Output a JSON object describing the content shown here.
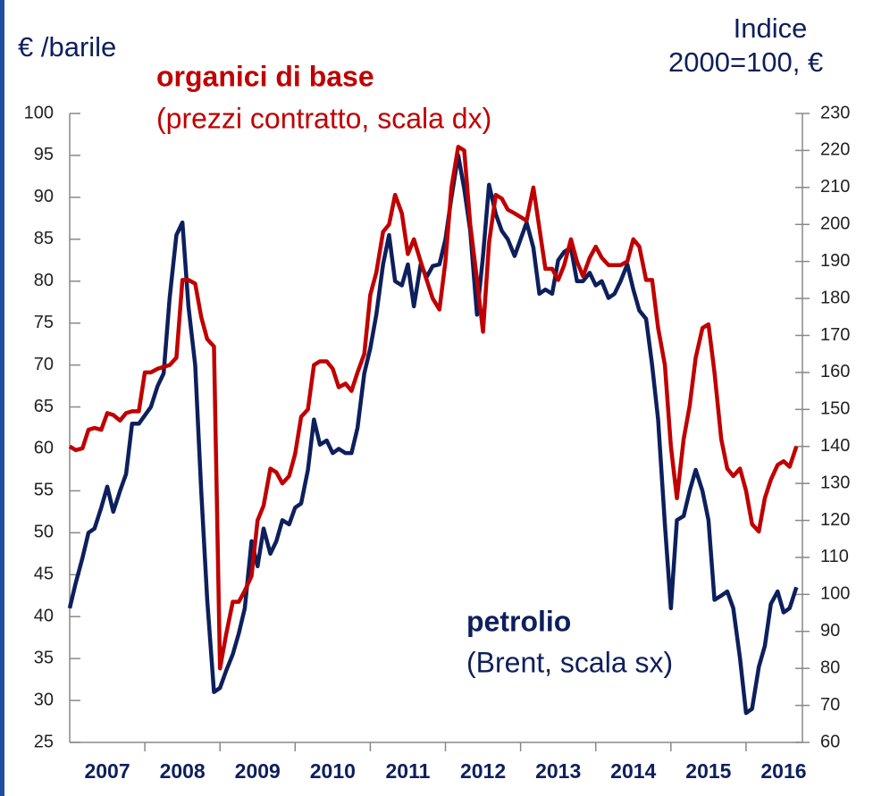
{
  "chart_data": {
    "type": "line",
    "ylabel": "€ /barile",
    "y2label": [
      "Indice",
      "2000=100, €"
    ],
    "annotations": [
      {
        "text": "organici di base",
        "series": 1
      },
      {
        "text": "(prezzi contratto, scala dx)",
        "series": 1
      },
      {
        "text": "petrolio",
        "series": 0
      },
      {
        "text": "(Brent, scala sx)",
        "series": 0
      }
    ],
    "x": [
      2007.0,
      2007.08,
      2007.17,
      2007.25,
      2007.33,
      2007.42,
      2007.5,
      2007.58,
      2007.67,
      2007.75,
      2007.83,
      2007.92,
      2008.0,
      2008.08,
      2008.17,
      2008.25,
      2008.33,
      2008.42,
      2008.5,
      2008.58,
      2008.67,
      2008.75,
      2008.83,
      2008.92,
      2009.0,
      2009.08,
      2009.17,
      2009.25,
      2009.33,
      2009.42,
      2009.5,
      2009.58,
      2009.67,
      2009.75,
      2009.83,
      2009.92,
      2010.0,
      2010.08,
      2010.17,
      2010.25,
      2010.33,
      2010.42,
      2010.5,
      2010.58,
      2010.67,
      2010.75,
      2010.83,
      2010.92,
      2011.0,
      2011.08,
      2011.17,
      2011.25,
      2011.33,
      2011.42,
      2011.5,
      2011.58,
      2011.67,
      2011.75,
      2011.83,
      2011.92,
      2012.0,
      2012.08,
      2012.17,
      2012.25,
      2012.33,
      2012.42,
      2012.5,
      2012.58,
      2012.67,
      2012.75,
      2012.83,
      2012.92,
      2013.0,
      2013.08,
      2013.17,
      2013.25,
      2013.33,
      2013.42,
      2013.5,
      2013.58,
      2013.67,
      2013.75,
      2013.83,
      2013.92,
      2014.0,
      2014.08,
      2014.17,
      2014.25,
      2014.33,
      2014.42,
      2014.5,
      2014.58,
      2014.67,
      2014.75,
      2014.83,
      2014.92,
      2015.0,
      2015.08,
      2015.17,
      2015.25,
      2015.33,
      2015.42,
      2015.5,
      2015.58,
      2015.67,
      2015.75,
      2015.83,
      2015.92,
      2016.0,
      2016.08,
      2016.17,
      2016.25,
      2016.33,
      2016.42,
      2016.5,
      2016.58,
      2016.67
    ],
    "series": [
      {
        "name": "petrolio",
        "color": "#0d1f5c",
        "axis": "y",
        "values": [
          41,
          44,
          47,
          50,
          50.5,
          53,
          55.5,
          52.5,
          55,
          57,
          63,
          63,
          64,
          65,
          67.5,
          69,
          78,
          85.5,
          87,
          77,
          70,
          55,
          42,
          31,
          31.5,
          33.5,
          35.5,
          38,
          41,
          49,
          46,
          50.5,
          47.5,
          49,
          51.5,
          51,
          53,
          53.5,
          57.5,
          63.5,
          60.5,
          61,
          59.5,
          60,
          59.5,
          59.5,
          62.5,
          69,
          72,
          76,
          82,
          85.5,
          80,
          79.5,
          82,
          77,
          82,
          80.5,
          81.8,
          82,
          85,
          90,
          95,
          91,
          86,
          76,
          83,
          91.5,
          88,
          86,
          85,
          83,
          85,
          87,
          84,
          78.5,
          79,
          78.5,
          82.5,
          83.5,
          84,
          80,
          80,
          81,
          79.5,
          80,
          78,
          78.5,
          80,
          82,
          79,
          76.5,
          75.5,
          70,
          63.5,
          51,
          41,
          51.5,
          52,
          55,
          57.5,
          55,
          51.5,
          42,
          42.5,
          43,
          41,
          35,
          28.5,
          29,
          34,
          36.5,
          41.5,
          43,
          40.5,
          41,
          43.5
        ]
      },
      {
        "name": "organici di base",
        "color": "#c00000",
        "axis": "y2",
        "values": [
          140,
          139,
          139.5,
          144.5,
          145,
          144.5,
          149,
          148.5,
          147,
          149,
          149.5,
          149.5,
          160,
          160,
          161,
          161.5,
          162,
          164,
          185,
          185,
          184,
          175,
          169,
          167,
          80,
          89,
          98,
          98,
          101,
          105,
          120,
          124,
          134,
          133,
          130,
          132,
          138,
          148,
          150,
          162,
          163,
          163,
          161,
          156,
          157,
          155,
          160,
          165,
          181,
          187,
          198,
          200,
          208,
          203,
          192,
          196,
          190,
          185,
          180,
          177,
          190,
          210,
          221,
          220,
          200,
          185,
          171,
          195,
          208,
          207,
          204,
          203,
          202,
          201,
          210,
          199,
          188,
          188,
          185,
          189,
          196,
          190,
          186,
          191,
          194,
          191,
          189,
          189,
          189,
          190,
          196,
          194,
          185,
          185,
          172,
          162,
          140,
          126,
          142,
          151,
          164,
          172,
          173,
          160,
          142,
          134,
          132,
          134,
          128,
          119,
          117,
          126,
          131,
          135,
          136,
          134.5,
          140
        ]
      }
    ],
    "xlim": [
      2007,
      2016.75
    ],
    "xticks": [
      {
        "value": 2007.5,
        "label": "2007"
      },
      {
        "value": 2008.5,
        "label": "2008"
      },
      {
        "value": 2009.5,
        "label": "2009"
      },
      {
        "value": 2010.5,
        "label": "2010"
      },
      {
        "value": 2011.5,
        "label": "2011"
      },
      {
        "value": 2012.5,
        "label": "2012"
      },
      {
        "value": 2013.5,
        "label": "2013"
      },
      {
        "value": 2014.5,
        "label": "2014"
      },
      {
        "value": 2015.5,
        "label": "2015"
      },
      {
        "value": 2016.5,
        "label": "2016"
      }
    ],
    "ylim": [
      25,
      100
    ],
    "yticks": [
      25,
      30,
      35,
      40,
      45,
      50,
      55,
      60,
      65,
      70,
      75,
      80,
      85,
      90,
      95,
      100
    ],
    "y2lim": [
      60,
      230
    ],
    "y2ticks": [
      60,
      70,
      80,
      90,
      100,
      110,
      120,
      130,
      140,
      150,
      160,
      170,
      180,
      190,
      200,
      210,
      220,
      230
    ],
    "grid": false
  }
}
